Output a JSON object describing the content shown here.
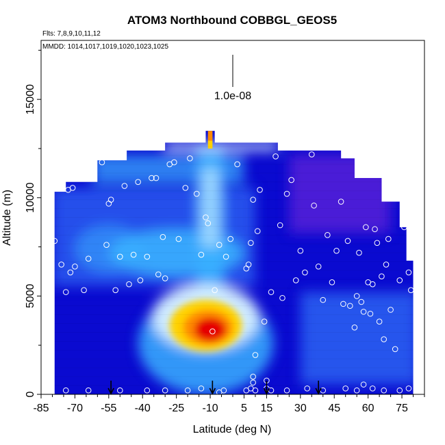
{
  "chart_data": {
    "type": "heatmap",
    "title": "ATOM3 Northbound COBBGL_GEOS5",
    "flights_label": "Flts: 7,8,9,10,11,12",
    "dates_label": "MMDD: 1014,1017,1019,1020,1023,1025",
    "scale_label": "1.0e-08",
    "xlabel": "Latitude (deg N)",
    "ylabel": "Altitude (m)",
    "xlim": [
      -85,
      85
    ],
    "ylim": [
      0,
      18000
    ],
    "x_ticks": [
      "-85",
      "-70",
      "-55",
      "-40",
      "-25",
      "-10",
      "5",
      "15",
      "30",
      "45",
      "60",
      "75"
    ],
    "x_tick_values": [
      -85,
      -70,
      -55,
      -40,
      -25,
      -10,
      5,
      15,
      30,
      45,
      60,
      75
    ],
    "y_ticks": [
      "0",
      "5000",
      "10000",
      "15000"
    ],
    "y_tick_values": [
      0,
      5000,
      10000,
      15000
    ],
    "arrow_latitudes": [
      -54,
      -9,
      15,
      38
    ],
    "colors": {
      "background_low": "#0a0ad0",
      "mid_blue": "#2a5cf0",
      "light_blue": "#3ab0ff",
      "pale": "#d8f0ff",
      "high_red": "#e60000",
      "orange": "#ff8a00",
      "yellow": "#ffd200",
      "purple": "#5a1ed8"
    },
    "sample_points": [
      [
        -79,
        7800
      ],
      [
        -76,
        6600
      ],
      [
        -74,
        5200
      ],
      [
        -73,
        10400
      ],
      [
        -72,
        6200
      ],
      [
        -71,
        10500
      ],
      [
        -70,
        6500
      ],
      [
        -66,
        5300
      ],
      [
        -64,
        6900
      ],
      [
        -58,
        11800
      ],
      [
        -56,
        7600
      ],
      [
        -55,
        9700
      ],
      [
        -54,
        9900
      ],
      [
        -52,
        5300
      ],
      [
        -50,
        7000
      ],
      [
        -48,
        10600
      ],
      [
        -46,
        5600
      ],
      [
        -44,
        7100
      ],
      [
        -42,
        10800
      ],
      [
        -41,
        5800
      ],
      [
        -38,
        7000
      ],
      [
        -36,
        11000
      ],
      [
        -34,
        11000
      ],
      [
        -33,
        6100
      ],
      [
        -31,
        8000
      ],
      [
        -30,
        5900
      ],
      [
        -28,
        11700
      ],
      [
        -26,
        11800
      ],
      [
        -24,
        7900
      ],
      [
        -21,
        10500
      ],
      [
        -19,
        12000
      ],
      [
        -16,
        10200
      ],
      [
        -14,
        7100
      ],
      [
        -12,
        9000
      ],
      [
        -11,
        8700
      ],
      [
        -9,
        3200
      ],
      [
        -8,
        5300
      ],
      [
        -6,
        7600
      ],
      [
        -3,
        7000
      ],
      [
        -1,
        7900
      ],
      [
        2,
        11700
      ],
      [
        6,
        6400
      ],
      [
        7,
        6600
      ],
      [
        8,
        7700
      ],
      [
        9,
        9900
      ],
      [
        10,
        2000
      ],
      [
        11,
        8300
      ],
      [
        12,
        10400
      ],
      [
        14,
        3700
      ],
      [
        17,
        5200
      ],
      [
        19,
        12100
      ],
      [
        21,
        8600
      ],
      [
        22,
        4900
      ],
      [
        24,
        10200
      ],
      [
        26,
        10900
      ],
      [
        28,
        5800
      ],
      [
        30,
        7300
      ],
      [
        32,
        6200
      ],
      [
        35,
        12200
      ],
      [
        36,
        9600
      ],
      [
        38,
        6500
      ],
      [
        40,
        4800
      ],
      [
        42,
        8100
      ],
      [
        44,
        5700
      ],
      [
        46,
        7300
      ],
      [
        48,
        9800
      ],
      [
        49,
        4600
      ],
      [
        51,
        7800
      ],
      [
        52,
        4500
      ],
      [
        54,
        3400
      ],
      [
        55,
        5000
      ],
      [
        56,
        7200
      ],
      [
        57,
        4700
      ],
      [
        58,
        4200
      ],
      [
        59,
        8500
      ],
      [
        60,
        5700
      ],
      [
        61,
        4100
      ],
      [
        62,
        5600
      ],
      [
        63,
        8400
      ],
      [
        64,
        7700
      ],
      [
        65,
        3700
      ],
      [
        66,
        6000
      ],
      [
        67,
        2800
      ],
      [
        68,
        6600
      ],
      [
        69,
        7900
      ],
      [
        70,
        4300
      ],
      [
        72,
        2300
      ],
      [
        74,
        5800
      ],
      [
        76,
        8500
      ],
      [
        78,
        6200
      ],
      [
        79,
        5300
      ],
      [
        -74,
        200
      ],
      [
        -64,
        200
      ],
      [
        -50,
        200
      ],
      [
        -38,
        200
      ],
      [
        -30,
        200
      ],
      [
        -20,
        200
      ],
      [
        -14,
        300
      ],
      [
        -4,
        200
      ],
      [
        6,
        200
      ],
      [
        8,
        300
      ],
      [
        9,
        600
      ],
      [
        10,
        200
      ],
      [
        15,
        700
      ],
      [
        17,
        200
      ],
      [
        24,
        200
      ],
      [
        33,
        300
      ],
      [
        40,
        200
      ],
      [
        50,
        300
      ],
      [
        55,
        200
      ],
      [
        58,
        500
      ],
      [
        62,
        300
      ],
      [
        67,
        200
      ],
      [
        74,
        200
      ],
      [
        78,
        300
      ],
      [
        9,
        900
      ],
      [
        15,
        300
      ],
      [
        -6,
        100
      ]
    ]
  }
}
